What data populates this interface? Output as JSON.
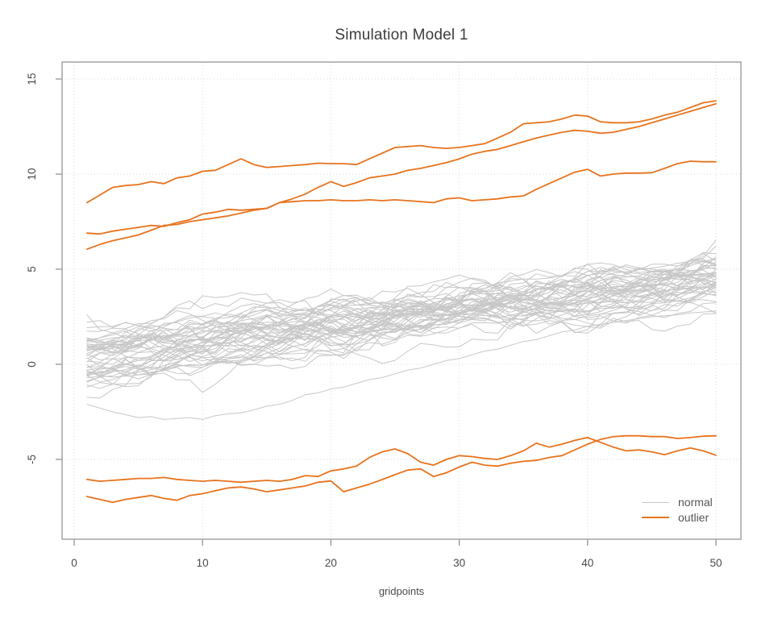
{
  "chart_data": {
    "type": "line",
    "title": "Simulation Model 1",
    "xlabel": "gridpoints",
    "ylabel": "",
    "x_start": 1,
    "x_step": 1,
    "n_points": 50,
    "x_ticks": [
      0,
      10,
      20,
      30,
      40,
      50
    ],
    "y_ticks": [
      15,
      10,
      5,
      0,
      -5
    ],
    "xlim": [
      -1,
      52
    ],
    "ylim": [
      -9.2,
      15.9
    ],
    "grid": "dotted",
    "colors": {
      "normal": "#C7C7C7",
      "outlier": "#E7731E",
      "grid": "#DADADA",
      "box": "#A3A3A3",
      "tick": "#8a8a8a",
      "tick_text": "#4a4a4a"
    },
    "legend": {
      "position": "bottom-right",
      "entries": [
        {
          "label": "normal",
          "color": "#C7C7C7"
        },
        {
          "label": "outlier",
          "color": "#E7731E"
        }
      ]
    },
    "series_normal": {
      "label": "normal",
      "color": "#C7C7C7",
      "count": 50,
      "band_start_range": [
        -2.2,
        2.5
      ],
      "band_end_range": [
        2.3,
        7.0
      ],
      "trend": [
        0.3,
        4.5
      ],
      "generator": {
        "seed": 42,
        "ar": 0.93,
        "step_sd": 0.3,
        "start_sd": 1.05,
        "start_clamp": 2.3,
        "dev_clamp": 2.55
      },
      "low_series_values": [
        -2.1,
        -2.3,
        -2.5,
        -2.65,
        -2.8,
        -2.75,
        -2.9,
        -2.85,
        -2.8,
        -2.9,
        -2.7,
        -2.6,
        -2.55,
        -2.4,
        -2.2,
        -2.1,
        -1.9,
        -1.6,
        -1.5,
        -1.3,
        -1.2,
        -1.0,
        -0.8,
        -0.7,
        -0.5,
        -0.3,
        -0.2,
        0.0,
        0.2,
        0.3,
        0.5,
        0.7,
        0.8,
        1.0,
        1.2,
        1.3,
        1.5,
        1.7,
        1.8,
        2.0,
        2.1,
        2.2,
        2.3,
        2.4,
        2.5,
        2.55,
        2.6,
        2.7,
        2.75,
        2.8
      ]
    },
    "series_outlier": {
      "label": "outlier",
      "color": "#E7731E",
      "series": [
        {
          "values": [
            8.5,
            8.9,
            9.3,
            9.4,
            9.45,
            9.6,
            9.5,
            9.8,
            9.9,
            10.15,
            10.2,
            10.5,
            10.8,
            10.5,
            10.35,
            10.4,
            10.45,
            10.5,
            10.57,
            10.55,
            10.55,
            10.5,
            10.8,
            11.1,
            11.4,
            11.45,
            11.5,
            11.4,
            11.35,
            11.4,
            11.5,
            11.6,
            11.9,
            12.2,
            12.65,
            12.7,
            12.75,
            12.9,
            13.1,
            13.05,
            12.75,
            12.7,
            12.7,
            12.75,
            12.9,
            13.1,
            13.25,
            13.5,
            13.75,
            13.85
          ]
        },
        {
          "values": [
            6.05,
            6.3,
            6.5,
            6.65,
            6.8,
            7.05,
            7.3,
            7.35,
            7.5,
            7.6,
            7.7,
            7.8,
            7.95,
            8.1,
            8.2,
            8.5,
            8.7,
            8.95,
            9.3,
            9.6,
            9.35,
            9.55,
            9.8,
            9.9,
            10.0,
            10.2,
            10.3,
            10.45,
            10.6,
            10.8,
            11.05,
            11.2,
            11.3,
            11.5,
            11.7,
            11.9,
            12.05,
            12.2,
            12.3,
            12.25,
            12.15,
            12.2,
            12.35,
            12.5,
            12.7,
            12.9,
            13.1,
            13.3,
            13.5,
            13.7
          ]
        },
        {
          "values": [
            6.9,
            6.85,
            7.0,
            7.1,
            7.2,
            7.3,
            7.25,
            7.45,
            7.6,
            7.9,
            8.0,
            8.15,
            8.1,
            8.15,
            8.2,
            8.5,
            8.55,
            8.6,
            8.6,
            8.65,
            8.6,
            8.6,
            8.65,
            8.6,
            8.65,
            8.6,
            8.55,
            8.5,
            8.7,
            8.75,
            8.6,
            8.65,
            8.7,
            8.8,
            8.85,
            9.2,
            9.5,
            9.8,
            10.1,
            10.25,
            9.9,
            10.0,
            10.05,
            10.05,
            10.07,
            10.3,
            10.55,
            10.68,
            10.65,
            10.65
          ]
        },
        {
          "values": [
            -6.05,
            -6.15,
            -6.1,
            -6.05,
            -6.0,
            -6.0,
            -5.95,
            -6.05,
            -6.1,
            -6.15,
            -6.1,
            -6.15,
            -6.2,
            -6.15,
            -6.1,
            -6.15,
            -6.05,
            -5.85,
            -5.9,
            -5.6,
            -5.5,
            -5.35,
            -4.9,
            -4.6,
            -4.45,
            -4.7,
            -5.15,
            -5.3,
            -5.0,
            -4.8,
            -4.85,
            -4.95,
            -5.0,
            -4.8,
            -4.55,
            -4.15,
            -4.35,
            -4.2,
            -4.0,
            -3.85,
            -4.1,
            -4.35,
            -4.55,
            -4.5,
            -4.6,
            -4.75,
            -4.55,
            -4.4,
            -4.55,
            -4.78
          ]
        },
        {
          "values": [
            -6.95,
            -7.1,
            -7.26,
            -7.1,
            -7.0,
            -6.9,
            -7.05,
            -7.15,
            -6.9,
            -6.8,
            -6.65,
            -6.5,
            -6.45,
            -6.55,
            -6.7,
            -6.6,
            -6.5,
            -6.4,
            -6.2,
            -6.13,
            -6.7,
            -6.5,
            -6.3,
            -6.06,
            -5.8,
            -5.56,
            -5.5,
            -5.9,
            -5.7,
            -5.4,
            -5.15,
            -5.3,
            -5.35,
            -5.2,
            -5.1,
            -5.05,
            -4.9,
            -4.8,
            -4.5,
            -4.2,
            -3.95,
            -3.8,
            -3.76,
            -3.76,
            -3.8,
            -3.8,
            -3.9,
            -3.85,
            -3.78,
            -3.76
          ]
        }
      ]
    }
  }
}
